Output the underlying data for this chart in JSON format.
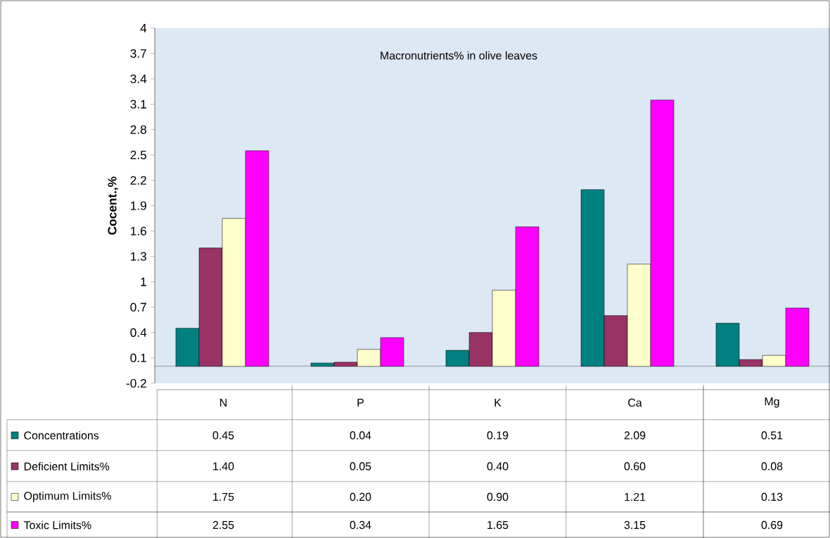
{
  "chart_data": {
    "type": "bar",
    "title": "Macronutrients% in olive leaves",
    "ylabel": "Cocent.,%",
    "categories": [
      "N",
      "P",
      "K",
      "Ca",
      "Mg"
    ],
    "series": [
      {
        "name": "Concentrations",
        "color": "#008080",
        "values": [
          0.45,
          0.04,
          0.19,
          2.09,
          0.51
        ],
        "value_labels": [
          "0.45",
          "0.04",
          "0.19",
          "2.09",
          "0.51"
        ]
      },
      {
        "name": "Deficient Limits%",
        "color": "#993366",
        "values": [
          1.4,
          0.05,
          0.4,
          0.6,
          0.08
        ],
        "value_labels": [
          "1.40",
          "0.05",
          "0.40",
          "0.60",
          "0.08"
        ]
      },
      {
        "name": "Optimum Limits%",
        "color": "#ffffcc",
        "values": [
          1.75,
          0.2,
          0.9,
          1.21,
          0.13
        ],
        "value_labels": [
          "1.75",
          "0.20",
          "0.90",
          "1.21",
          "0.13"
        ]
      },
      {
        "name": "Toxic Limits%",
        "color": "#ff00ff",
        "values": [
          2.55,
          0.34,
          1.65,
          3.15,
          0.69
        ],
        "value_labels": [
          "2.55",
          "0.34",
          "1.65",
          "3.15",
          "0.69"
        ]
      }
    ],
    "ylim": [
      -0.2,
      4
    ],
    "yticks": [
      -0.2,
      0.1,
      0.4,
      0.7,
      1,
      1.3,
      1.6,
      1.9,
      2.2,
      2.5,
      2.8,
      3.1,
      3.4,
      3.7,
      4
    ],
    "grid": false,
    "legend": "bottom"
  }
}
